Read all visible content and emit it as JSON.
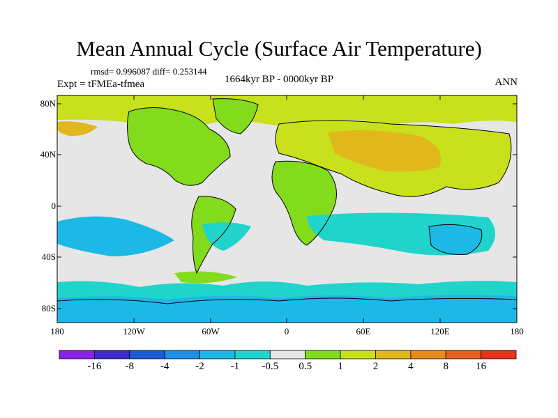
{
  "title": "Mean Annual Cycle (Surface Air Temperature)",
  "stats": "rmsd= 0.996087 diff= 0.253144",
  "period": "1664kyr BP - 0000kyr BP",
  "experiment": "Expt = tFMEa-tfmea",
  "season": "ANN",
  "lat_labels": [
    "80N",
    "40N",
    "0",
    "40S",
    "80S"
  ],
  "lon_labels": [
    "180",
    "120W",
    "60W",
    "0",
    "60E",
    "120E",
    "180"
  ],
  "colorbar": {
    "labels": [
      "-16",
      "-8",
      "-4",
      "-2",
      "-1",
      "-0.5",
      "0.5",
      "1",
      "2",
      "4",
      "8",
      "16"
    ],
    "colors": [
      "#8a22e6",
      "#3f2acc",
      "#1c5ad6",
      "#1e8fe6",
      "#1db8e6",
      "#20d4cc",
      "#e6e6e6",
      "#82dc1c",
      "#c9e01c",
      "#e0b81c",
      "#e68c1c",
      "#e6601c",
      "#e6321c"
    ]
  },
  "palette": {
    "ocean_neutral": "#e6e6e6",
    "cool_small": "#20d4cc",
    "cool": "#1db8e6",
    "warm_small": "#82dc1c",
    "warm": "#c9e01c",
    "warmer": "#e0b81c"
  }
}
